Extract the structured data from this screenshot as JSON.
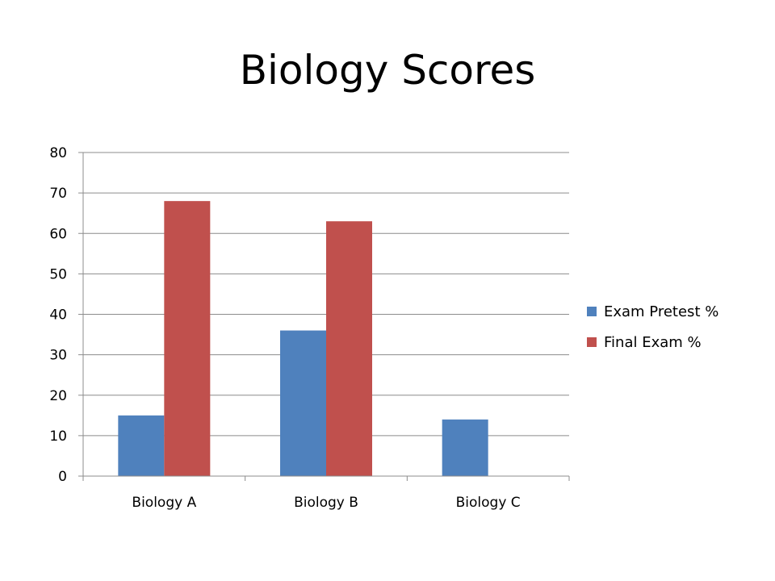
{
  "chart_data": {
    "type": "bar",
    "title": "Biology Scores",
    "categories": [
      "Biology A",
      "Biology B",
      "Biology C"
    ],
    "series": [
      {
        "name": "Exam Pretest %",
        "values": [
          15,
          36,
          14
        ],
        "color": "#4f81bd"
      },
      {
        "name": "Final Exam %",
        "values": [
          68,
          63,
          0
        ],
        "color": "#c0504d"
      }
    ],
    "ylim": [
      0,
      80
    ],
    "yticks": [
      0,
      10,
      20,
      30,
      40,
      50,
      60,
      70,
      80
    ],
    "grid": true,
    "legend": "right"
  }
}
